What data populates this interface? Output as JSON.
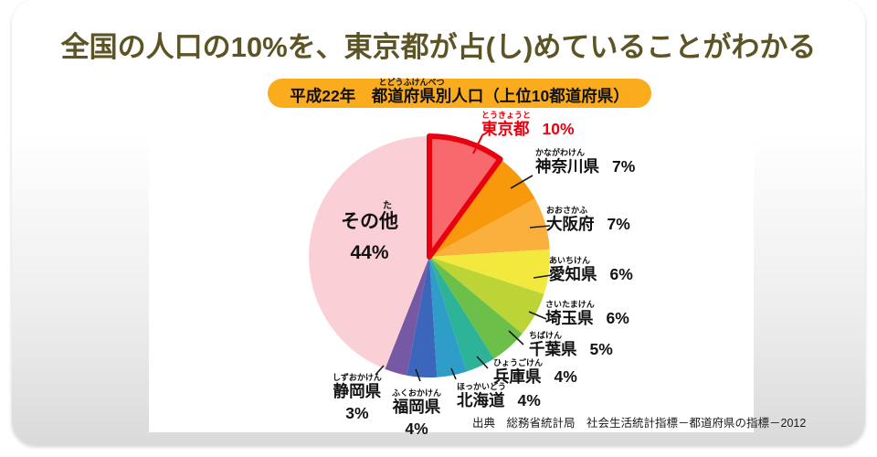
{
  "title": "全国の人口の10%を、東京都が占(し)めていることがわかる",
  "subtitle": {
    "prefix": "平成22年　",
    "ruby_base": "都道府県別",
    "ruby_text": "とどうふけんべつ",
    "suffix": "人口（上位10都道府県）",
    "pill_color": "#fbac1d"
  },
  "source": "出典　総務省統計局　社会生活統計指標－都道府県の指標－2012",
  "chart_data": {
    "type": "pie",
    "title": "平成22年 都道府県別人口（上位10都道府県）",
    "unit": "%",
    "start_angle_deg": -90,
    "direction": "clockwise",
    "highlight_note": "東京都 slice outlined in thick red",
    "items": [
      {
        "label": "東京都",
        "furigana": "とうきょうと",
        "value": 10,
        "pct_label": "10%",
        "color": "#f8696e",
        "highlight": true,
        "highlight_color": "#e8000f"
      },
      {
        "label": "神奈川県",
        "furigana": "かながわけん",
        "value": 7,
        "pct_label": "7%",
        "color": "#f8980b"
      },
      {
        "label": "大阪府",
        "furigana": "おおさかふ",
        "value": 7,
        "pct_label": "7%",
        "color": "#fbb03d"
      },
      {
        "label": "愛知県",
        "furigana": "あいちけん",
        "value": 6,
        "pct_label": "6%",
        "color": "#f3e93e"
      },
      {
        "label": "埼玉県",
        "furigana": "さいたまけん",
        "value": 6,
        "pct_label": "6%",
        "color": "#bdd437"
      },
      {
        "label": "千葉県",
        "furigana": "ちばけん",
        "value": 5,
        "pct_label": "5%",
        "color": "#6cc04a"
      },
      {
        "label": "兵庫県",
        "furigana": "ひょうごけん",
        "value": 4,
        "pct_label": "4%",
        "color": "#2db498"
      },
      {
        "label": "北海道",
        "furigana": "ほっかいどう",
        "value": 4,
        "pct_label": "4%",
        "color": "#2e9ec9"
      },
      {
        "label": "福岡県",
        "furigana": "ふくおかけん",
        "value": 4,
        "pct_label": "4%",
        "color": "#3c66bb"
      },
      {
        "label": "静岡県",
        "furigana": "しずおかけん",
        "value": 3,
        "pct_label": "3%",
        "color": "#7659a5"
      },
      {
        "label": "その他",
        "furigana": "た",
        "label_prefix": "その",
        "ruby_base": "他",
        "value": 44,
        "pct_label": "44%",
        "color": "#fad0d6"
      }
    ]
  }
}
